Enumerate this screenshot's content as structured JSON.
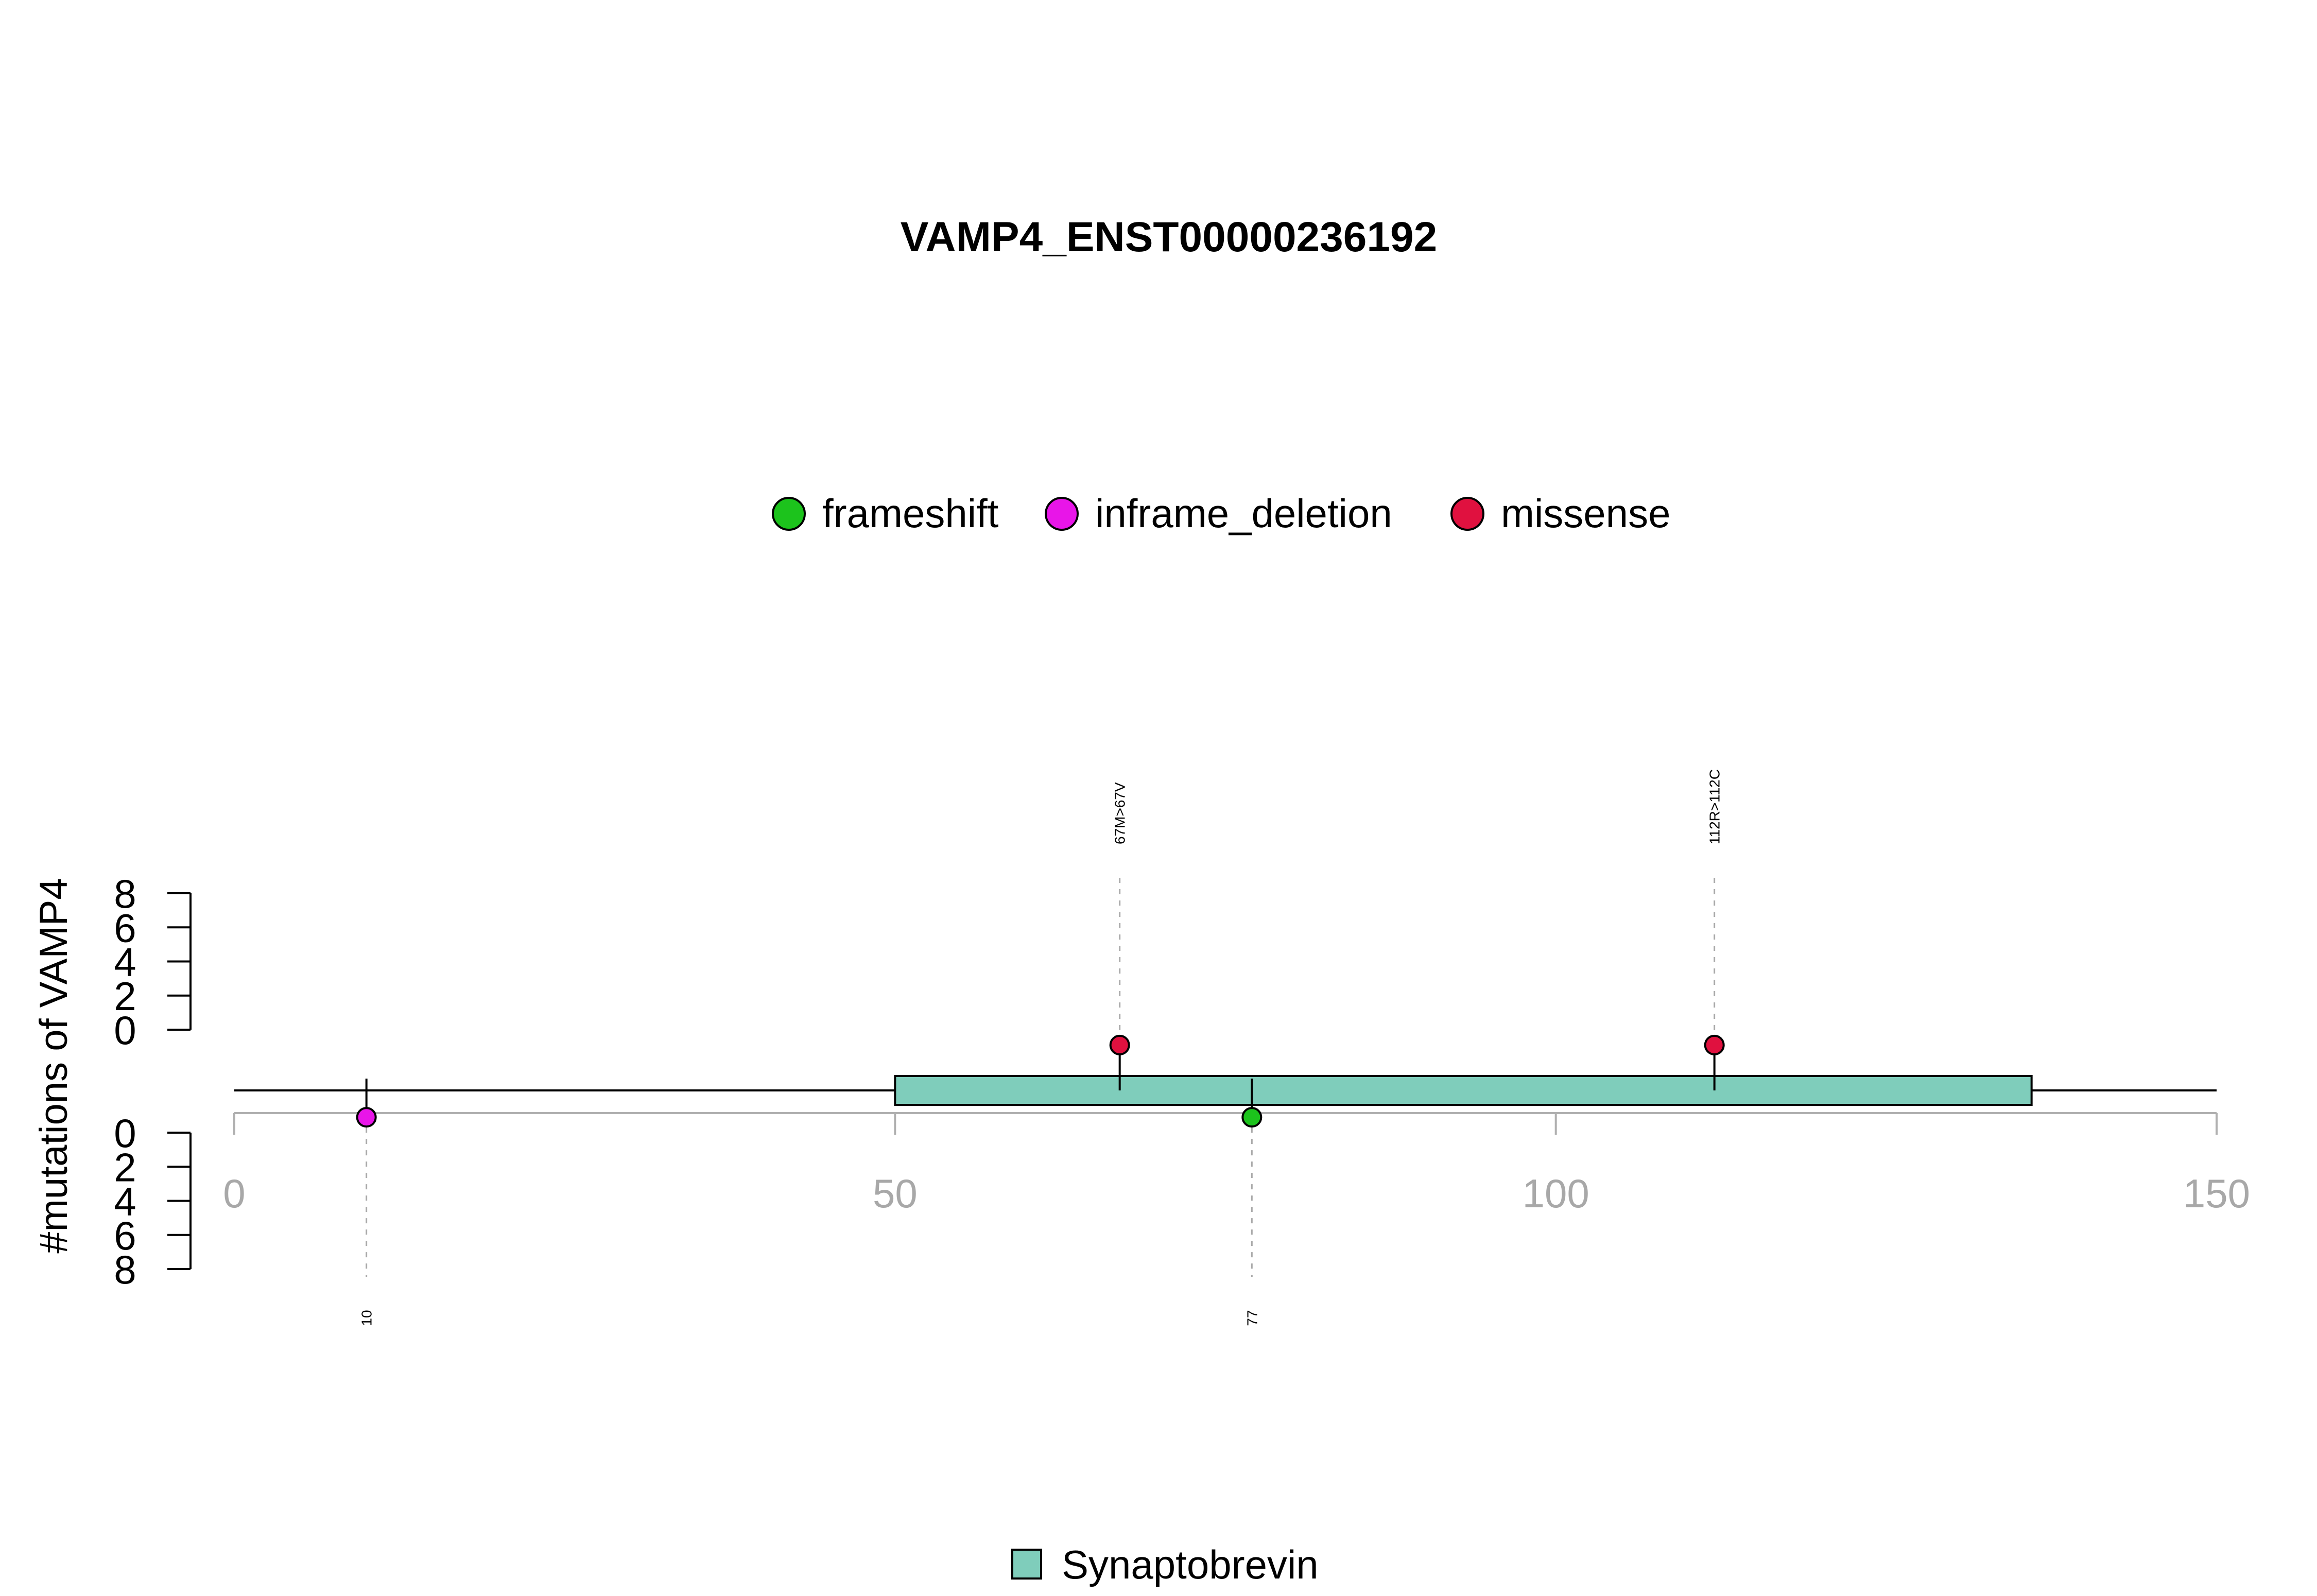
{
  "chart_data": {
    "type": "lollipop",
    "title": "VAMP4_ENST00000236192",
    "ylabel": "#mutations of VAMP4",
    "xlim": [
      0,
      150
    ],
    "x_ticks": [
      "0",
      "50",
      "100",
      "150"
    ],
    "y_ticks_top": [
      "0",
      "2",
      "4",
      "6",
      "8"
    ],
    "y_ticks_bottom": [
      "0",
      "2",
      "4",
      "6",
      "8"
    ],
    "ylim": [
      0,
      8
    ],
    "protein_length": 150,
    "legend": [
      {
        "label": "frameshift",
        "color": "#1CC31C"
      },
      {
        "label": "inframe_deletion",
        "color": "#E815E8"
      },
      {
        "label": "missense",
        "color": "#E0113F"
      }
    ],
    "domains": [
      {
        "name": "Synaptobrevin",
        "start": 50,
        "end": 136,
        "color": "#7FCDBB"
      }
    ],
    "mutations": [
      {
        "position": 67,
        "count": 1,
        "type": "missense",
        "label": "67M>67V",
        "side": "top",
        "color": "#E0113F"
      },
      {
        "position": 112,
        "count": 1,
        "type": "missense",
        "label": "112R>112C",
        "side": "top",
        "color": "#E0113F"
      },
      {
        "position": 10,
        "count": 1,
        "type": "inframe_deletion",
        "label": "10",
        "side": "bottom",
        "color": "#E815E8"
      },
      {
        "position": 77,
        "count": 1,
        "type": "frameshift",
        "label": "77",
        "side": "bottom",
        "color": "#1CC31C"
      }
    ]
  }
}
